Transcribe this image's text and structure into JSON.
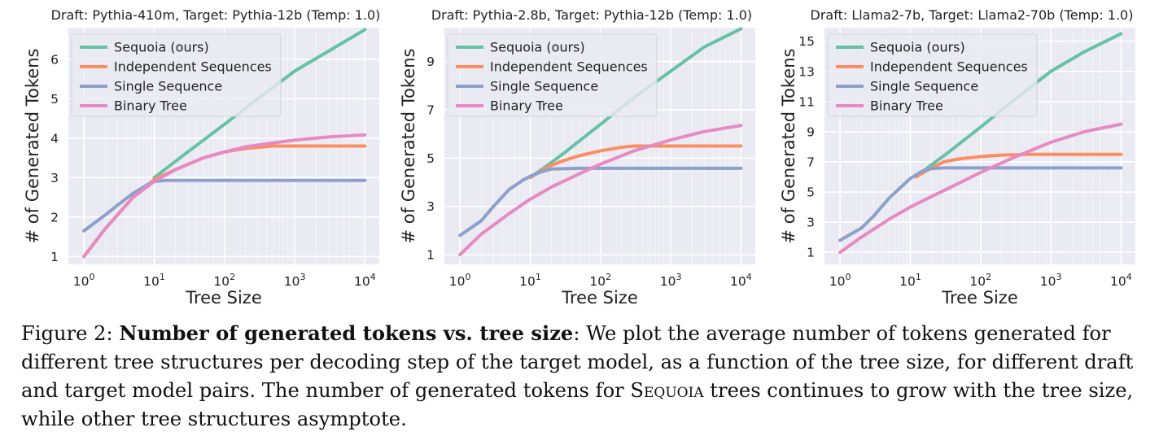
{
  "figure": {
    "label": "Figure 2:",
    "bold_title": "Number of generated tokens vs. tree size",
    "text_before_name": ": We plot the average number of tokens generated for different tree structures per decoding step of the target model, as a function of the tree size, for different draft and target model pairs. The number of generated tokens for ",
    "method_name": "Sequoia",
    "text_after_name": " trees continues to grow with the tree size, while other tree structures asymptote."
  },
  "colors": {
    "Sequoia (ours)": "#66c2a5",
    "Independent Sequences": "#fc8d62",
    "Single Sequence": "#8da0cb",
    "Binary Tree": "#e78ac3",
    "panel_bg": "#eaeaf2",
    "grid": "#ffffff"
  },
  "chart_data": [
    {
      "type": "line",
      "title": "Draft: Pythia-410m, Target: Pythia-12b (Temp: 1.0)",
      "xlabel": "Tree Size",
      "ylabel": "# of Generated Tokens",
      "xscale": "log",
      "xlim": [
        0.6,
        16000
      ],
      "ylim": [
        0.8,
        6.8
      ],
      "x_ticks": [
        1,
        10,
        100,
        1000,
        10000
      ],
      "x_tick_labels": [
        [
          "10",
          "0"
        ],
        [
          "10",
          "1"
        ],
        [
          "10",
          "2"
        ],
        [
          "10",
          "3"
        ],
        [
          "10",
          "4"
        ]
      ],
      "y_ticks": [
        1,
        2,
        3,
        4,
        5,
        6
      ],
      "y_tick_labels": [
        "1",
        "2",
        "3",
        "4",
        "5",
        "6"
      ],
      "legend": "top-left",
      "series": [
        {
          "name": "Sequoia (ours)",
          "x": [
            10,
            30,
            100,
            300,
            1000,
            3000,
            10000
          ],
          "y": [
            3.0,
            3.65,
            4.35,
            5.0,
            5.7,
            6.2,
            6.75
          ]
        },
        {
          "name": "Independent Sequences",
          "x": [
            1,
            2,
            5,
            10,
            20,
            50,
            100,
            200,
            500,
            1000,
            10000
          ],
          "y": [
            1.0,
            1.7,
            2.5,
            2.95,
            3.2,
            3.5,
            3.65,
            3.74,
            3.8,
            3.8,
            3.8
          ]
        },
        {
          "name": "Single Sequence",
          "x": [
            1,
            2,
            3,
            5,
            8,
            10,
            15,
            30,
            100,
            1000,
            10000
          ],
          "y": [
            1.65,
            2.05,
            2.3,
            2.6,
            2.82,
            2.9,
            2.93,
            2.93,
            2.93,
            2.93,
            2.93
          ]
        },
        {
          "name": "Binary Tree",
          "x": [
            1,
            2,
            5,
            10,
            20,
            50,
            100,
            200,
            500,
            1000,
            3000,
            10000
          ],
          "y": [
            1.0,
            1.7,
            2.5,
            2.9,
            3.2,
            3.5,
            3.65,
            3.78,
            3.88,
            3.95,
            4.03,
            4.08
          ]
        }
      ]
    },
    {
      "type": "line",
      "title": "Draft: Pythia-2.8b, Target: Pythia-12b (Temp: 1.0)",
      "xlabel": "Tree Size",
      "ylabel": "# of Generated Tokens",
      "xscale": "log",
      "xlim": [
        0.6,
        16000
      ],
      "ylim": [
        0.6,
        10.4
      ],
      "x_ticks": [
        1,
        10,
        100,
        1000,
        10000
      ],
      "x_tick_labels": [
        [
          "10",
          "0"
        ],
        [
          "10",
          "1"
        ],
        [
          "10",
          "2"
        ],
        [
          "10",
          "3"
        ],
        [
          "10",
          "4"
        ]
      ],
      "y_ticks": [
        1,
        3,
        5,
        7,
        9
      ],
      "y_tick_labels": [
        "1",
        "3",
        "5",
        "7",
        "9"
      ],
      "legend": "top-left",
      "series": [
        {
          "name": "Sequoia (ours)",
          "x": [
            10,
            15,
            30,
            100,
            300,
            1000,
            3000,
            10000
          ],
          "y": [
            4.2,
            4.55,
            5.2,
            6.4,
            7.5,
            8.6,
            9.6,
            10.35
          ]
        },
        {
          "name": "Independent Sequences",
          "x": [
            10,
            15,
            20,
            30,
            50,
            100,
            200,
            300,
            500,
            1000,
            10000
          ],
          "y": [
            4.2,
            4.5,
            4.7,
            4.9,
            5.1,
            5.3,
            5.45,
            5.5,
            5.5,
            5.5,
            5.5
          ]
        },
        {
          "name": "Single Sequence",
          "x": [
            1,
            2,
            3,
            5,
            8,
            10,
            15,
            20,
            50,
            100,
            1000,
            10000
          ],
          "y": [
            1.8,
            2.4,
            3.0,
            3.7,
            4.1,
            4.25,
            4.45,
            4.55,
            4.58,
            4.58,
            4.58,
            4.58
          ]
        },
        {
          "name": "Binary Tree",
          "x": [
            1,
            2,
            5,
            10,
            20,
            50,
            100,
            300,
            1000,
            3000,
            10000
          ],
          "y": [
            1.0,
            1.85,
            2.7,
            3.3,
            3.8,
            4.35,
            4.75,
            5.3,
            5.75,
            6.1,
            6.35
          ]
        }
      ]
    },
    {
      "type": "line",
      "title": "Draft: Llama2-7b, Target: Llama2-70b (Temp: 1.0)",
      "xlabel": "Tree Size",
      "ylabel": "# of Generated Tokens",
      "xscale": "log",
      "xlim": [
        0.6,
        16000
      ],
      "ylim": [
        0.2,
        15.9
      ],
      "x_ticks": [
        1,
        10,
        100,
        1000,
        10000
      ],
      "x_tick_labels": [
        [
          "10",
          "0"
        ],
        [
          "10",
          "1"
        ],
        [
          "10",
          "2"
        ],
        [
          "10",
          "3"
        ],
        [
          "10",
          "4"
        ]
      ],
      "y_ticks": [
        1,
        3,
        5,
        7,
        9,
        11,
        13,
        15
      ],
      "y_tick_labels": [
        "1",
        "3",
        "5",
        "7",
        "9",
        "11",
        "13",
        "15"
      ],
      "legend": "top-left",
      "series": [
        {
          "name": "Sequoia (ours)",
          "x": [
            12,
            20,
            30,
            50,
            100,
            300,
            1000,
            3000,
            10000
          ],
          "y": [
            6.0,
            6.8,
            7.4,
            8.2,
            9.3,
            11.1,
            13.0,
            14.3,
            15.5
          ]
        },
        {
          "name": "Independent Sequences",
          "x": [
            12,
            20,
            30,
            50,
            100,
            200,
            500,
            1000,
            10000
          ],
          "y": [
            6.0,
            6.6,
            7.0,
            7.2,
            7.35,
            7.45,
            7.5,
            7.5,
            7.5
          ]
        },
        {
          "name": "Single Sequence",
          "x": [
            1,
            2,
            3,
            5,
            10,
            15,
            20,
            30,
            100,
            1000,
            10000
          ],
          "y": [
            1.8,
            2.6,
            3.4,
            4.6,
            5.9,
            6.4,
            6.55,
            6.6,
            6.6,
            6.6,
            6.6
          ]
        },
        {
          "name": "Binary Tree",
          "x": [
            1,
            2,
            5,
            10,
            20,
            50,
            100,
            300,
            1000,
            3000,
            10000
          ],
          "y": [
            1.0,
            2.0,
            3.2,
            4.0,
            4.7,
            5.6,
            6.3,
            7.3,
            8.3,
            9.0,
            9.5
          ]
        }
      ]
    }
  ]
}
